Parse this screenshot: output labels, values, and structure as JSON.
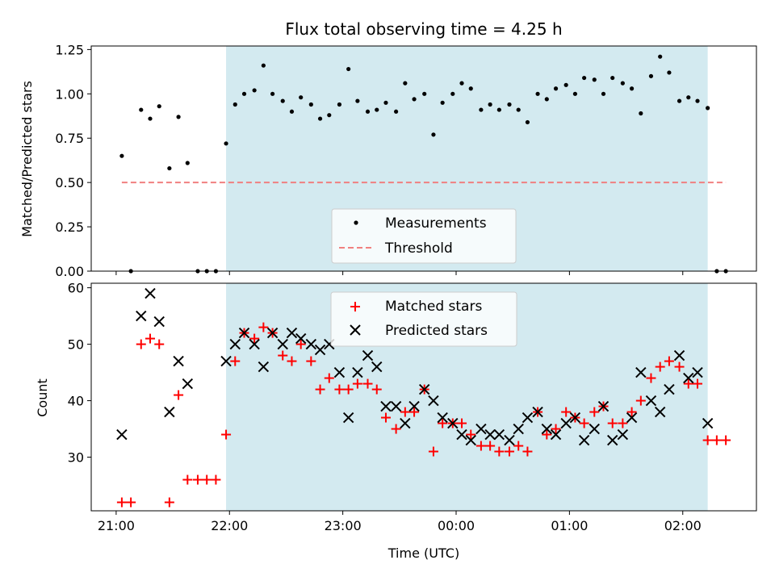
{
  "title": "Flux total observing time = 4.25 h",
  "chart_data": [
    {
      "type": "scatter",
      "ylabel": "Matched/Predicted stars",
      "xlabel": "",
      "x_unit": "hours since 21:00 UTC",
      "xlim": [
        -0.22,
        5.65
      ],
      "ylim": [
        0,
        1.27
      ],
      "yticks": [
        0.0,
        0.25,
        0.5,
        0.75,
        1.0,
        1.25
      ],
      "ytick_labels": [
        "0.00",
        "0.25",
        "0.50",
        "0.75",
        "1.00",
        "1.25"
      ],
      "highlight_span": {
        "x0": 0.97,
        "x1": 5.22,
        "color": "#d3eaf0"
      },
      "threshold": {
        "name": "Threshold",
        "y": 0.5,
        "x0": 0.05,
        "x1": 5.38,
        "color": "#f08080"
      },
      "legend": {
        "position": "lower center",
        "entries": [
          "Measurements",
          "Threshold"
        ]
      },
      "series": [
        {
          "name": "Measurements",
          "marker": "dot",
          "color": "#000000",
          "x": [
            0.05,
            0.13,
            0.22,
            0.3,
            0.38,
            0.47,
            0.55,
            0.63,
            0.72,
            0.8,
            0.88,
            0.97,
            1.05,
            1.13,
            1.22,
            1.3,
            1.38,
            1.47,
            1.55,
            1.63,
            1.72,
            1.8,
            1.88,
            1.97,
            2.05,
            2.13,
            2.22,
            2.3,
            2.38,
            2.47,
            2.55,
            2.63,
            2.72,
            2.8,
            2.88,
            2.97,
            3.05,
            3.13,
            3.22,
            3.3,
            3.38,
            3.47,
            3.55,
            3.63,
            3.72,
            3.8,
            3.88,
            3.97,
            4.05,
            4.13,
            4.22,
            4.3,
            4.38,
            4.47,
            4.55,
            4.63,
            4.72,
            4.8,
            4.88,
            4.97,
            5.05,
            5.13,
            5.22,
            5.3,
            5.38
          ],
          "y": [
            0.65,
            0.0,
            0.91,
            0.86,
            0.93,
            0.58,
            0.87,
            0.61,
            0.0,
            0.0,
            0.0,
            0.72,
            0.94,
            1.0,
            1.02,
            1.16,
            1.0,
            0.96,
            0.9,
            0.98,
            0.94,
            0.86,
            0.88,
            0.94,
            1.14,
            0.96,
            0.9,
            0.91,
            0.95,
            0.9,
            1.06,
            0.97,
            1.0,
            0.77,
            0.95,
            1.0,
            1.06,
            1.03,
            0.91,
            0.94,
            0.91,
            0.94,
            0.91,
            0.84,
            1.0,
            0.97,
            1.03,
            1.05,
            1.0,
            1.09,
            1.08,
            1.0,
            1.09,
            1.06,
            1.03,
            0.89,
            1.1,
            1.21,
            1.12,
            0.96,
            0.98,
            0.96,
            0.92,
            0.0,
            0.0
          ]
        }
      ]
    },
    {
      "type": "scatter",
      "ylabel": "Count",
      "xlabel": "Time (UTC)",
      "x_unit": "hours since 21:00 UTC",
      "xlim": [
        -0.22,
        5.65
      ],
      "ylim": [
        20.5,
        60.8
      ],
      "yticks": [
        30,
        40,
        50,
        60
      ],
      "ytick_labels": [
        "30",
        "40",
        "50",
        "60"
      ],
      "xticks": [
        0,
        1,
        2,
        3,
        4,
        5
      ],
      "xtick_labels": [
        "21:00",
        "22:00",
        "23:00",
        "00:00",
        "01:00",
        "02:00"
      ],
      "highlight_span": {
        "x0": 0.97,
        "x1": 5.22,
        "color": "#d3eaf0"
      },
      "legend": {
        "position": "upper center",
        "entries": [
          "Matched stars",
          "Predicted stars"
        ]
      },
      "series": [
        {
          "name": "Matched stars",
          "marker": "plus",
          "color": "#ff0000",
          "x": [
            0.05,
            0.13,
            0.22,
            0.3,
            0.38,
            0.47,
            0.55,
            0.63,
            0.72,
            0.8,
            0.88,
            0.97,
            1.05,
            1.13,
            1.22,
            1.3,
            1.38,
            1.47,
            1.55,
            1.63,
            1.72,
            1.8,
            1.88,
            1.97,
            2.05,
            2.13,
            2.22,
            2.3,
            2.38,
            2.47,
            2.55,
            2.63,
            2.72,
            2.8,
            2.88,
            2.97,
            3.05,
            3.13,
            3.22,
            3.3,
            3.38,
            3.47,
            3.55,
            3.63,
            3.72,
            3.8,
            3.88,
            3.97,
            4.05,
            4.13,
            4.22,
            4.3,
            4.38,
            4.47,
            4.55,
            4.63,
            4.72,
            4.8,
            4.88,
            4.97,
            5.05,
            5.13,
            5.22,
            5.3,
            5.38
          ],
          "y": [
            22,
            22,
            50,
            51,
            50,
            22,
            41,
            26,
            26,
            26,
            26,
            34,
            47,
            52,
            51,
            53,
            52,
            48,
            47,
            50,
            47,
            42,
            44,
            42,
            42,
            43,
            43,
            42,
            37,
            35,
            38,
            38,
            42,
            31,
            36,
            36,
            36,
            34,
            32,
            32,
            31,
            31,
            32,
            31,
            38,
            34,
            35,
            38,
            37,
            36,
            38,
            39,
            36,
            36,
            38,
            40,
            44,
            46,
            47,
            46,
            43,
            43,
            33,
            33,
            33
          ]
        },
        {
          "name": "Predicted stars",
          "marker": "x",
          "color": "#000000",
          "x": [
            0.05,
            0.22,
            0.3,
            0.38,
            0.47,
            0.55,
            0.63,
            0.97,
            1.05,
            1.13,
            1.22,
            1.3,
            1.38,
            1.47,
            1.55,
            1.63,
            1.72,
            1.8,
            1.88,
            1.97,
            2.05,
            2.13,
            2.22,
            2.3,
            2.38,
            2.47,
            2.55,
            2.63,
            2.72,
            2.8,
            2.88,
            2.97,
            3.05,
            3.13,
            3.22,
            3.3,
            3.38,
            3.47,
            3.55,
            3.63,
            3.72,
            3.8,
            3.88,
            3.97,
            4.05,
            4.13,
            4.22,
            4.3,
            4.38,
            4.47,
            4.55,
            4.63,
            4.72,
            4.8,
            4.88,
            4.97,
            5.05,
            5.13,
            5.22
          ],
          "y": [
            34,
            55,
            59,
            54,
            38,
            47,
            43,
            47,
            50,
            52,
            50,
            46,
            52,
            50,
            52,
            51,
            50,
            49,
            50,
            45,
            37,
            45,
            48,
            46,
            39,
            39,
            36,
            39,
            42,
            40,
            37,
            36,
            34,
            33,
            35,
            34,
            34,
            33,
            35,
            37,
            38,
            35,
            34,
            36,
            37,
            33,
            35,
            39,
            33,
            34,
            37,
            45,
            40,
            38,
            42,
            48,
            44,
            45,
            36
          ]
        }
      ]
    }
  ]
}
